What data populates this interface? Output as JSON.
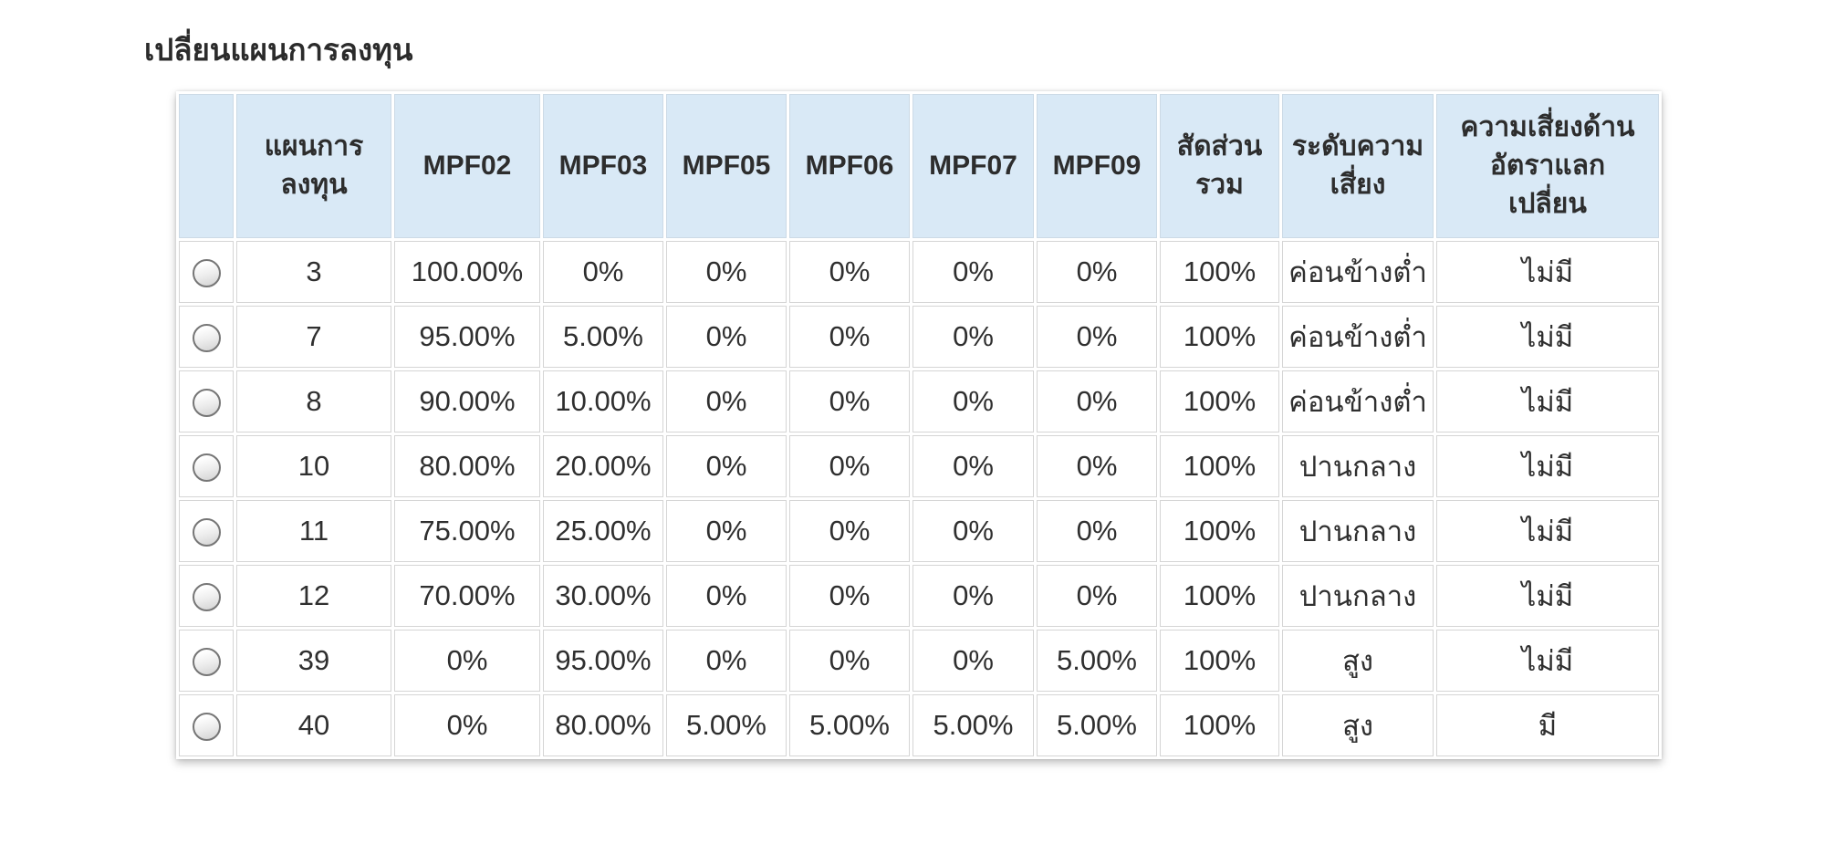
{
  "page": {
    "title": "เปลี่ยนแผนการลงทุน"
  },
  "colors": {
    "header_bg": "#d9e9f6",
    "header_border": "#ccdae6",
    "cell_border": "#d5d5d5",
    "text": "#2f2f2f",
    "page_bg": "#ffffff"
  },
  "table": {
    "columns": [
      {
        "id": "select",
        "label": "",
        "lines": [
          ""
        ]
      },
      {
        "id": "plan",
        "label": "แผนการลงทุน",
        "lines": [
          "แผนการ",
          "ลงทุน"
        ]
      },
      {
        "id": "mpf02",
        "label": "MPF02",
        "lines": [
          "MPF02"
        ]
      },
      {
        "id": "mpf03",
        "label": "MPF03",
        "lines": [
          "MPF03"
        ]
      },
      {
        "id": "mpf05",
        "label": "MPF05",
        "lines": [
          "MPF05"
        ]
      },
      {
        "id": "mpf06",
        "label": "MPF06",
        "lines": [
          "MPF06"
        ]
      },
      {
        "id": "mpf07",
        "label": "MPF07",
        "lines": [
          "MPF07"
        ]
      },
      {
        "id": "mpf09",
        "label": "MPF09",
        "lines": [
          "MPF09"
        ]
      },
      {
        "id": "total",
        "label": "สัดส่วนรวม",
        "lines": [
          "สัดส่วน",
          "รวม"
        ]
      },
      {
        "id": "risk_level",
        "label": "ระดับความเสี่ยง",
        "lines": [
          "ระดับความ",
          "เสี่ยง"
        ]
      },
      {
        "id": "fx_risk",
        "label": "ความเสี่ยงด้านอัตราแลกเปลี่ยน",
        "lines": [
          "ความเสี่ยงด้าน",
          "อัตราแลก",
          "เปลี่ยน"
        ]
      }
    ],
    "rows": [
      {
        "selected": false,
        "plan": "3",
        "mpf02": "100.00%",
        "mpf03": "0%",
        "mpf05": "0%",
        "mpf06": "0%",
        "mpf07": "0%",
        "mpf09": "0%",
        "total": "100%",
        "risk_level": "ค่อนข้างต่ำ",
        "fx_risk": "ไม่มี"
      },
      {
        "selected": false,
        "plan": "7",
        "mpf02": "95.00%",
        "mpf03": "5.00%",
        "mpf05": "0%",
        "mpf06": "0%",
        "mpf07": "0%",
        "mpf09": "0%",
        "total": "100%",
        "risk_level": "ค่อนข้างต่ำ",
        "fx_risk": "ไม่มี"
      },
      {
        "selected": false,
        "plan": "8",
        "mpf02": "90.00%",
        "mpf03": "10.00%",
        "mpf05": "0%",
        "mpf06": "0%",
        "mpf07": "0%",
        "mpf09": "0%",
        "total": "100%",
        "risk_level": "ค่อนข้างต่ำ",
        "fx_risk": "ไม่มี"
      },
      {
        "selected": false,
        "plan": "10",
        "mpf02": "80.00%",
        "mpf03": "20.00%",
        "mpf05": "0%",
        "mpf06": "0%",
        "mpf07": "0%",
        "mpf09": "0%",
        "total": "100%",
        "risk_level": "ปานกลาง",
        "fx_risk": "ไม่มี"
      },
      {
        "selected": false,
        "plan": "11",
        "mpf02": "75.00%",
        "mpf03": "25.00%",
        "mpf05": "0%",
        "mpf06": "0%",
        "mpf07": "0%",
        "mpf09": "0%",
        "total": "100%",
        "risk_level": "ปานกลาง",
        "fx_risk": "ไม่มี"
      },
      {
        "selected": false,
        "plan": "12",
        "mpf02": "70.00%",
        "mpf03": "30.00%",
        "mpf05": "0%",
        "mpf06": "0%",
        "mpf07": "0%",
        "mpf09": "0%",
        "total": "100%",
        "risk_level": "ปานกลาง",
        "fx_risk": "ไม่มี"
      },
      {
        "selected": false,
        "plan": "39",
        "mpf02": "0%",
        "mpf03": "95.00%",
        "mpf05": "0%",
        "mpf06": "0%",
        "mpf07": "0%",
        "mpf09": "5.00%",
        "total": "100%",
        "risk_level": "สูง",
        "fx_risk": "ไม่มี"
      },
      {
        "selected": false,
        "plan": "40",
        "mpf02": "0%",
        "mpf03": "80.00%",
        "mpf05": "5.00%",
        "mpf06": "5.00%",
        "mpf07": "5.00%",
        "mpf09": "5.00%",
        "total": "100%",
        "risk_level": "สูง",
        "fx_risk": "มี"
      }
    ]
  }
}
